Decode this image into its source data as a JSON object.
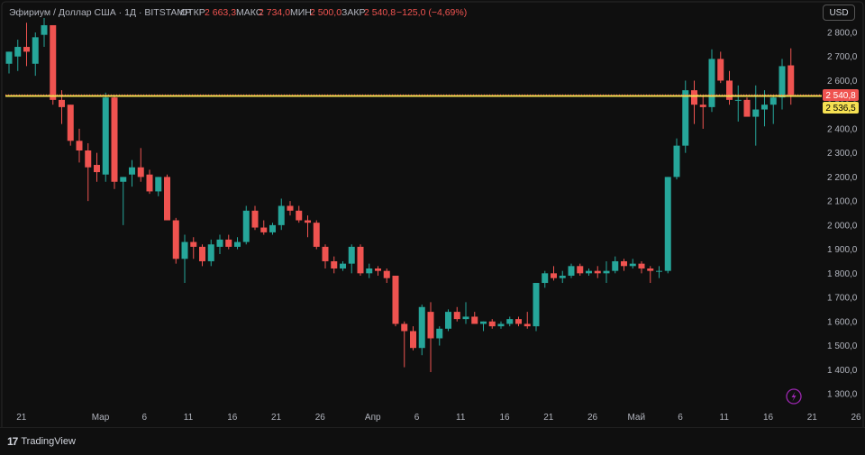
{
  "header": {
    "symbol": "Эфириум / Доллар США · 1Д · BITSTAMP",
    "open_label": "ОТКР",
    "open_value": "2 663,3",
    "high_label": "МАКС",
    "high_value": "2 734,0",
    "low_label": "МИН",
    "low_value": "2 500,0",
    "close_label": "ЗАКР",
    "close_value": "2 540,8",
    "change_value": "−125,0 (−4,69%)"
  },
  "currency_button": "USD",
  "footer": {
    "brand": "TradingView",
    "brand_mark": "17"
  },
  "price_badges": {
    "last": "2 540,8",
    "line": "2 536,5"
  },
  "colors": {
    "up": "#26a69a",
    "down": "#ef5350",
    "line": "#f5e052",
    "background": "#0f0f0f",
    "text": "#b2b5be"
  },
  "chart_data": {
    "type": "candlestick",
    "y_ticks": [
      "1 300,0",
      "1 400,0",
      "1 500,0",
      "1 600,0",
      "1 700,0",
      "1 800,0",
      "1 900,0",
      "2 000,0",
      "2 100,0",
      "2 200,0",
      "2 300,0",
      "2 400,0",
      "2 500,0",
      "2 600,0",
      "2 700,0",
      "2 800,0"
    ],
    "y_tick_values": [
      1300,
      1400,
      1500,
      1600,
      1700,
      1800,
      1900,
      2000,
      2100,
      2200,
      2300,
      2400,
      2500,
      2600,
      2700,
      2800
    ],
    "x_ticks": [
      {
        "label": "21",
        "index": 1
      },
      {
        "label": "Мар",
        "index": 10
      },
      {
        "label": "6",
        "index": 15
      },
      {
        "label": "11",
        "index": 20
      },
      {
        "label": "16",
        "index": 25
      },
      {
        "label": "21",
        "index": 30
      },
      {
        "label": "26",
        "index": 35
      },
      {
        "label": "Апр",
        "index": 41
      },
      {
        "label": "6",
        "index": 46
      },
      {
        "label": "11",
        "index": 51
      },
      {
        "label": "16",
        "index": 56
      },
      {
        "label": "21",
        "index": 61
      },
      {
        "label": "26",
        "index": 66
      },
      {
        "label": "Май",
        "index": 71
      },
      {
        "label": "6",
        "index": 76
      },
      {
        "label": "11",
        "index": 81
      },
      {
        "label": "16",
        "index": 86
      },
      {
        "label": "21",
        "index": 91
      },
      {
        "label": "26",
        "index": 96
      }
    ],
    "horizontal_line_value": 2536.5,
    "candles": [
      {
        "o": 2670,
        "h": 2720,
        "l": 2630,
        "c": 2720
      },
      {
        "o": 2700,
        "h": 2770,
        "l": 2640,
        "c": 2740
      },
      {
        "o": 2740,
        "h": 2840,
        "l": 2660,
        "c": 2720
      },
      {
        "o": 2670,
        "h": 2800,
        "l": 2620,
        "c": 2780
      },
      {
        "o": 2790,
        "h": 2860,
        "l": 2740,
        "c": 2830
      },
      {
        "o": 2830,
        "h": 2830,
        "l": 2500,
        "c": 2520
      },
      {
        "o": 2520,
        "h": 2560,
        "l": 2420,
        "c": 2490
      },
      {
        "o": 2500,
        "h": 2500,
        "l": 2330,
        "c": 2350
      },
      {
        "o": 2350,
        "h": 2400,
        "l": 2260,
        "c": 2310
      },
      {
        "o": 2310,
        "h": 2340,
        "l": 2100,
        "c": 2240
      },
      {
        "o": 2250,
        "h": 2300,
        "l": 2180,
        "c": 2220
      },
      {
        "o": 2210,
        "h": 2550,
        "l": 2180,
        "c": 2530
      },
      {
        "o": 2530,
        "h": 2540,
        "l": 2150,
        "c": 2180
      },
      {
        "o": 2180,
        "h": 2200,
        "l": 2000,
        "c": 2200
      },
      {
        "o": 2210,
        "h": 2270,
        "l": 2160,
        "c": 2240
      },
      {
        "o": 2240,
        "h": 2320,
        "l": 2180,
        "c": 2200
      },
      {
        "o": 2210,
        "h": 2230,
        "l": 2130,
        "c": 2140
      },
      {
        "o": 2140,
        "h": 2200,
        "l": 2120,
        "c": 2200
      },
      {
        "o": 2200,
        "h": 2210,
        "l": 2020,
        "c": 2020
      },
      {
        "o": 2020,
        "h": 2030,
        "l": 1840,
        "c": 1860
      },
      {
        "o": 1860,
        "h": 1960,
        "l": 1760,
        "c": 1930
      },
      {
        "o": 1930,
        "h": 1950,
        "l": 1860,
        "c": 1910
      },
      {
        "o": 1910,
        "h": 1920,
        "l": 1830,
        "c": 1850
      },
      {
        "o": 1850,
        "h": 1940,
        "l": 1830,
        "c": 1920
      },
      {
        "o": 1910,
        "h": 1960,
        "l": 1880,
        "c": 1940
      },
      {
        "o": 1940,
        "h": 1960,
        "l": 1900,
        "c": 1910
      },
      {
        "o": 1910,
        "h": 1950,
        "l": 1900,
        "c": 1930
      },
      {
        "o": 1930,
        "h": 2080,
        "l": 1920,
        "c": 2060
      },
      {
        "o": 2060,
        "h": 2080,
        "l": 1980,
        "c": 1990
      },
      {
        "o": 1990,
        "h": 2020,
        "l": 1960,
        "c": 1970
      },
      {
        "o": 1970,
        "h": 2010,
        "l": 1960,
        "c": 2000
      },
      {
        "o": 2000,
        "h": 2110,
        "l": 1980,
        "c": 2080
      },
      {
        "o": 2080,
        "h": 2100,
        "l": 2040,
        "c": 2060
      },
      {
        "o": 2060,
        "h": 2080,
        "l": 2010,
        "c": 2020
      },
      {
        "o": 2020,
        "h": 2040,
        "l": 1950,
        "c": 2010
      },
      {
        "o": 2010,
        "h": 2020,
        "l": 1900,
        "c": 1910
      },
      {
        "o": 1910,
        "h": 1920,
        "l": 1820,
        "c": 1850
      },
      {
        "o": 1850,
        "h": 1870,
        "l": 1800,
        "c": 1820
      },
      {
        "o": 1820,
        "h": 1850,
        "l": 1810,
        "c": 1840
      },
      {
        "o": 1840,
        "h": 1920,
        "l": 1800,
        "c": 1910
      },
      {
        "o": 1910,
        "h": 1920,
        "l": 1790,
        "c": 1800
      },
      {
        "o": 1800,
        "h": 1840,
        "l": 1780,
        "c": 1820
      },
      {
        "o": 1820,
        "h": 1830,
        "l": 1790,
        "c": 1810
      },
      {
        "o": 1810,
        "h": 1820,
        "l": 1760,
        "c": 1780
      },
      {
        "o": 1790,
        "h": 1790,
        "l": 1580,
        "c": 1590
      },
      {
        "o": 1590,
        "h": 1600,
        "l": 1410,
        "c": 1560
      },
      {
        "o": 1560,
        "h": 1580,
        "l": 1480,
        "c": 1490
      },
      {
        "o": 1490,
        "h": 1670,
        "l": 1460,
        "c": 1660
      },
      {
        "o": 1640,
        "h": 1680,
        "l": 1390,
        "c": 1530
      },
      {
        "o": 1530,
        "h": 1580,
        "l": 1500,
        "c": 1570
      },
      {
        "o": 1570,
        "h": 1650,
        "l": 1560,
        "c": 1640
      },
      {
        "o": 1640,
        "h": 1660,
        "l": 1600,
        "c": 1610
      },
      {
        "o": 1610,
        "h": 1680,
        "l": 1590,
        "c": 1620
      },
      {
        "o": 1620,
        "h": 1640,
        "l": 1590,
        "c": 1590
      },
      {
        "o": 1590,
        "h": 1600,
        "l": 1560,
        "c": 1600
      },
      {
        "o": 1600,
        "h": 1610,
        "l": 1570,
        "c": 1580
      },
      {
        "o": 1580,
        "h": 1600,
        "l": 1570,
        "c": 1590
      },
      {
        "o": 1590,
        "h": 1620,
        "l": 1580,
        "c": 1610
      },
      {
        "o": 1610,
        "h": 1620,
        "l": 1580,
        "c": 1590
      },
      {
        "o": 1590,
        "h": 1640,
        "l": 1570,
        "c": 1580
      },
      {
        "o": 1580,
        "h": 1760,
        "l": 1560,
        "c": 1760
      },
      {
        "o": 1760,
        "h": 1810,
        "l": 1740,
        "c": 1800
      },
      {
        "o": 1800,
        "h": 1830,
        "l": 1770,
        "c": 1780
      },
      {
        "o": 1780,
        "h": 1810,
        "l": 1760,
        "c": 1790
      },
      {
        "o": 1790,
        "h": 1840,
        "l": 1780,
        "c": 1830
      },
      {
        "o": 1830,
        "h": 1840,
        "l": 1790,
        "c": 1800
      },
      {
        "o": 1800,
        "h": 1820,
        "l": 1790,
        "c": 1810
      },
      {
        "o": 1810,
        "h": 1830,
        "l": 1780,
        "c": 1800
      },
      {
        "o": 1800,
        "h": 1850,
        "l": 1760,
        "c": 1810
      },
      {
        "o": 1810,
        "h": 1870,
        "l": 1800,
        "c": 1850
      },
      {
        "o": 1850,
        "h": 1860,
        "l": 1810,
        "c": 1830
      },
      {
        "o": 1830,
        "h": 1860,
        "l": 1820,
        "c": 1840
      },
      {
        "o": 1840,
        "h": 1850,
        "l": 1800,
        "c": 1820
      },
      {
        "o": 1820,
        "h": 1830,
        "l": 1760,
        "c": 1810
      },
      {
        "o": 1810,
        "h": 1830,
        "l": 1780,
        "c": 1810
      },
      {
        "o": 1810,
        "h": 2200,
        "l": 1800,
        "c": 2200
      },
      {
        "o": 2200,
        "h": 2360,
        "l": 2190,
        "c": 2330
      },
      {
        "o": 2330,
        "h": 2600,
        "l": 2300,
        "c": 2560
      },
      {
        "o": 2560,
        "h": 2600,
        "l": 2420,
        "c": 2500
      },
      {
        "o": 2500,
        "h": 2540,
        "l": 2400,
        "c": 2490
      },
      {
        "o": 2490,
        "h": 2730,
        "l": 2470,
        "c": 2690
      },
      {
        "o": 2690,
        "h": 2720,
        "l": 2590,
        "c": 2600
      },
      {
        "o": 2600,
        "h": 2640,
        "l": 2500,
        "c": 2520
      },
      {
        "o": 2520,
        "h": 2580,
        "l": 2430,
        "c": 2520
      },
      {
        "o": 2520,
        "h": 2530,
        "l": 2460,
        "c": 2450
      },
      {
        "o": 2450,
        "h": 2580,
        "l": 2330,
        "c": 2480
      },
      {
        "o": 2480,
        "h": 2560,
        "l": 2410,
        "c": 2500
      },
      {
        "o": 2500,
        "h": 2540,
        "l": 2420,
        "c": 2530
      },
      {
        "o": 2530,
        "h": 2690,
        "l": 2480,
        "c": 2660
      },
      {
        "o": 2663.3,
        "h": 2734,
        "l": 2500,
        "c": 2540.8
      }
    ]
  }
}
